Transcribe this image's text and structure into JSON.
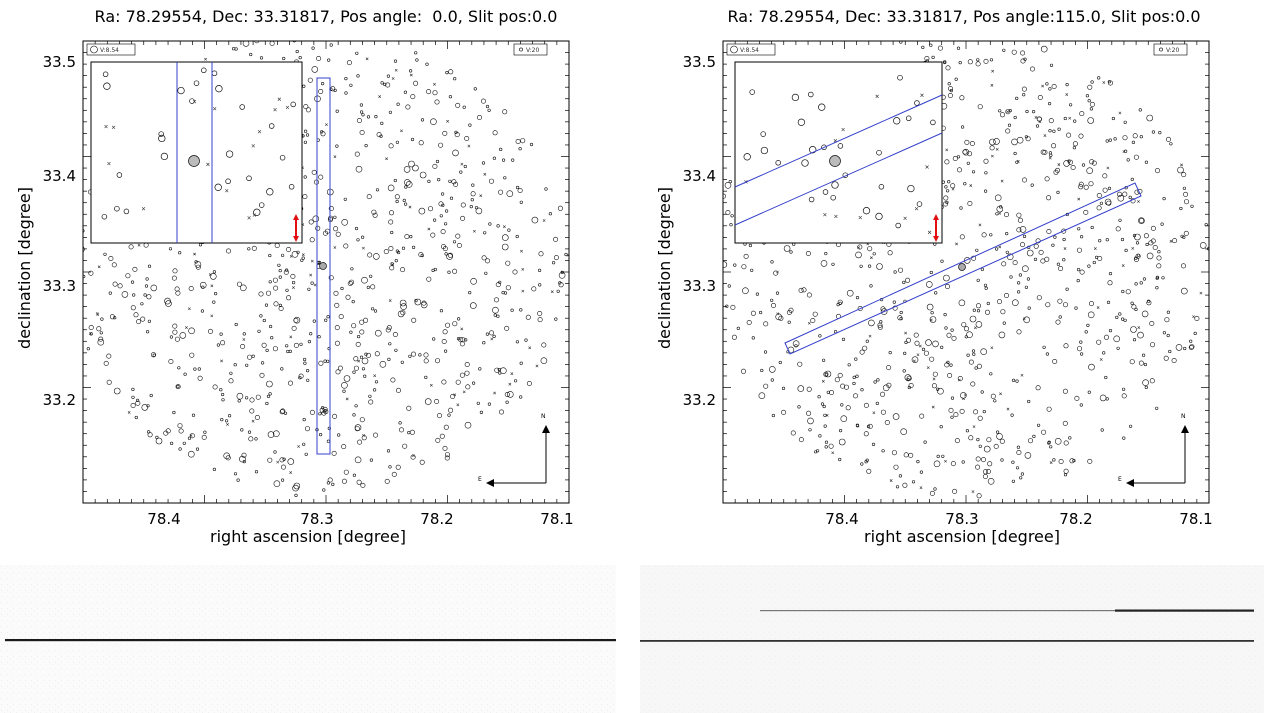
{
  "chart_data": [
    {
      "type": "scatter",
      "title": "Ra: 78.29554, Dec: 33.31817, Pos angle:  0.0, Slit pos:0.0",
      "xlabel": "right ascension [degree]",
      "ylabel": "declination [degree]",
      "xlim": [
        78.48,
        78.08
      ],
      "ylim": [
        33.11,
        33.53
      ],
      "x_ticks": [
        "78.4",
        "78.3",
        "78.2",
        "78.1"
      ],
      "y_ticks": [
        "33.5",
        "33.4",
        "33.3",
        "33.2"
      ],
      "center": {
        "ra": 78.29554,
        "dec": 33.31817
      },
      "pos_angle": 0.0,
      "slit_pos": 0.0,
      "legend_left": "V:8.54",
      "legend_right": "V:20",
      "compass": {
        "north": "N",
        "east": "E"
      },
      "grid": false
    },
    {
      "type": "scatter",
      "title": "Ra: 78.29554, Dec: 33.31817, Pos angle:115.0, Slit pos:0.0",
      "xlabel": "right ascension [degree]",
      "ylabel": "declination [degree]",
      "xlim": [
        78.48,
        78.08
      ],
      "ylim": [
        33.11,
        33.53
      ],
      "x_ticks": [
        "78.4",
        "78.3",
        "78.2",
        "78.1"
      ],
      "y_ticks": [
        "33.5",
        "33.4",
        "33.3",
        "33.2"
      ],
      "center": {
        "ra": 78.29554,
        "dec": 33.31817
      },
      "pos_angle": 115.0,
      "slit_pos": 0.0,
      "legend_left": "V:8.54",
      "legend_right": "V:20",
      "compass": {
        "north": "N",
        "east": "E"
      },
      "grid": false
    }
  ],
  "colors": {
    "slit": "#3340cc",
    "arrow": "#e01010",
    "frame": "#000000",
    "spectrum": "#1a1a1a",
    "noise": "#eeeeee"
  }
}
